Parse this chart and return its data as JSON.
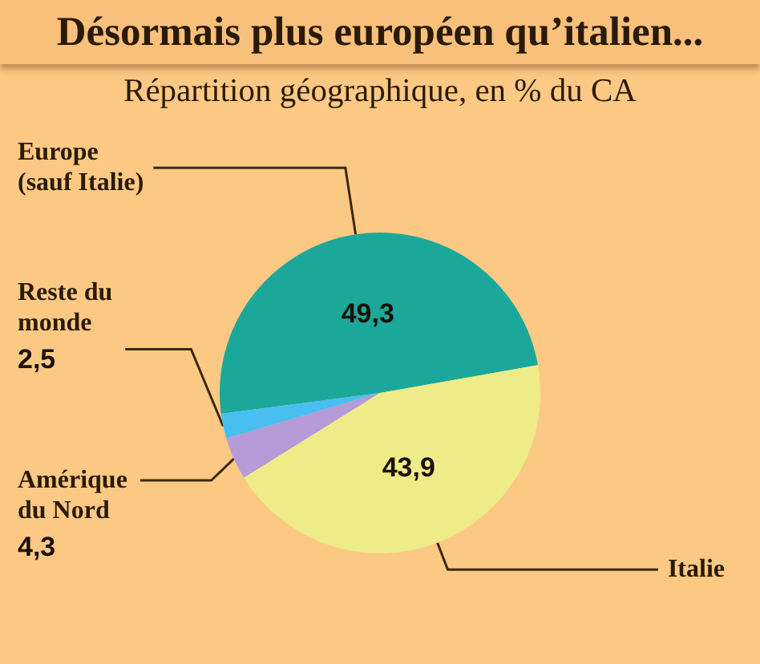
{
  "chart_data": {
    "type": "pie",
    "title": "Désormais plus européen qu’italien...",
    "subtitle": "Répartition géographique, en % du CA",
    "categories": [
      "Europe (sauf Italie)",
      "Reste du monde",
      "Amérique du Nord",
      "Italie"
    ],
    "values": [
      49.3,
      2.5,
      4.3,
      43.9
    ],
    "colors": [
      "#1ba89b",
      "#48bff0",
      "#b59bd8",
      "#eeec88"
    ],
    "value_labels": [
      "49,3",
      "2,5",
      "4,3",
      "43,9"
    ]
  }
}
